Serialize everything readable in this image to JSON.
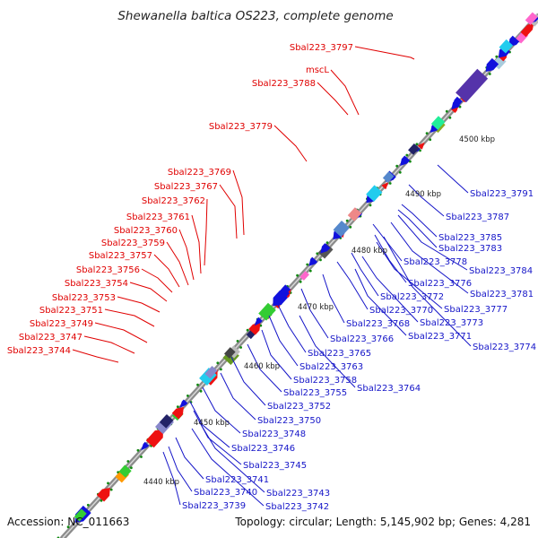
{
  "title": "Shewanella baltica OS223, complete genome",
  "footer": {
    "accession": "Accession: NC_011663",
    "topology": "Topology: circular; Length: 5,145,902 bp; Genes: 4,281"
  },
  "colors": {
    "forward_label": "#e00000",
    "reverse_label": "#1515c8",
    "backbone": "#8c8c8c",
    "forward_gene": "#ee1111",
    "reverse_gene": "#1111dd",
    "tick_dot": "#118811"
  },
  "kbp_markers": [
    "4440 kbp",
    "4450 kbp",
    "4460 kbp",
    "4470 kbp",
    "4480 kbp",
    "4490 kbp",
    "4500 kbp"
  ],
  "left_labels": [
    "Sbal223_3797",
    "mscL",
    "Sbal223_3788",
    "Sbal223_3779",
    "Sbal223_3769",
    "Sbal223_3767",
    "Sbal223_3762",
    "Sbal223_3761",
    "Sbal223_3760",
    "Sbal223_3759",
    "Sbal223_3757",
    "Sbal223_3756",
    "Sbal223_3754",
    "Sbal223_3753",
    "Sbal223_3751",
    "Sbal223_3749",
    "Sbal223_3747",
    "Sbal223_3744"
  ],
  "right_labels": [
    "Sbal223_3791",
    "Sbal223_3787",
    "Sbal223_3785",
    "Sbal223_3783",
    "Sbal223_3778",
    "Sbal223_3784",
    "Sbal223_3776",
    "Sbal223_3781",
    "Sbal223_3772",
    "Sbal223_3777",
    "Sbal223_3770",
    "Sbal223_3773",
    "Sbal223_3768",
    "Sbal223_3771",
    "Sbal223_3766",
    "Sbal223_3774",
    "Sbal223_3765",
    "Sbal223_3763",
    "Sbal223_3758",
    "Sbal223_3764",
    "Sbal223_3755",
    "Sbal223_3752",
    "Sbal223_3750",
    "Sbal223_3748",
    "Sbal223_3746",
    "Sbal223_3745",
    "Sbal223_3741",
    "Sbal223_3740",
    "Sbal223_3743",
    "Sbal223_3739",
    "Sbal223_3742"
  ]
}
